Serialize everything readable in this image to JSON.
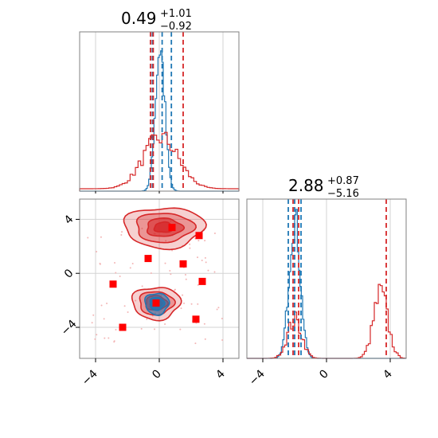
{
  "chart_data": {
    "type": "corner",
    "colors": {
      "blue": "#1f77b4",
      "red": "#d62728",
      "marker": "#ff0000"
    },
    "axes": {
      "x_range": [
        -5,
        5
      ],
      "y_range": [
        -6.3,
        5.5
      ],
      "ticks": [
        -4,
        0,
        4
      ],
      "tick_labels": [
        "−4",
        "0",
        "4"
      ],
      "grid": true
    },
    "panels": [
      {
        "id": "param-0",
        "title_main": "0.49",
        "title_plus": "+1.01",
        "title_minus": "−0.92",
        "vlines_blue": [
          -0.43,
          0.18,
          0.76
        ],
        "vlines_red": [
          -0.55,
          -0.38,
          1.5
        ]
      },
      {
        "id": "param-1",
        "title_main": "2.88",
        "title_plus": "+0.87",
        "title_minus": "−5.16",
        "vlines_blue": [
          -2.4,
          -2.0,
          -1.6
        ],
        "vlines_red": [
          -2.1,
          -1.75,
          3.75
        ]
      }
    ],
    "hist_blue_0": {
      "center": 0.05,
      "sigma": 0.3,
      "peak": 0.9
    },
    "hist_red_0": {
      "center": 0.1,
      "sigma": 1.1,
      "peak": 0.32
    },
    "hist_blue_1": {
      "center": -2.0,
      "sigma": 0.35,
      "peak": 0.88
    },
    "hist_red_1_modes": [
      {
        "center": -2.0,
        "sigma": 0.45,
        "peak": 0.24
      },
      {
        "center": 3.4,
        "sigma": 0.45,
        "peak": 0.4
      }
    ],
    "contours_2d": {
      "red_blobs": [
        {
          "cx": 0.3,
          "cy": 3.4,
          "rx": 2.5,
          "ry": 1.5
        },
        {
          "cx": -0.2,
          "cy": -2.2,
          "rx": 1.5,
          "ry": 1.2
        }
      ],
      "blue_blob": {
        "cx": -0.15,
        "cy": -2.25,
        "rx": 0.75,
        "ry": 0.8
      }
    },
    "markers": [
      {
        "x": 0.8,
        "y": 3.4
      },
      {
        "x": 2.5,
        "y": 2.8
      },
      {
        "x": -0.7,
        "y": 1.1
      },
      {
        "x": 1.5,
        "y": 0.7
      },
      {
        "x": -2.9,
        "y": -0.8
      },
      {
        "x": 2.7,
        "y": -0.6
      },
      {
        "x": -0.2,
        "y": -2.2
      },
      {
        "x": -2.3,
        "y": -4.0
      },
      {
        "x": 2.3,
        "y": -3.4
      }
    ]
  }
}
